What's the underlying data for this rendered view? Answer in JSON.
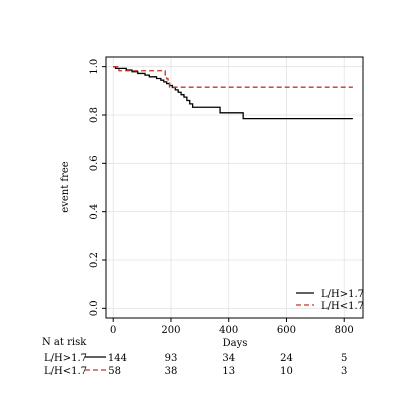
{
  "chart_data": {
    "type": "line",
    "xlabel": "Days",
    "ylabel": "event free",
    "xlim": [
      -25,
      865
    ],
    "ylim": [
      -0.04,
      1.04
    ],
    "x_ticks": [
      0,
      200,
      400,
      600,
      800
    ],
    "y_ticks": [
      0.0,
      0.2,
      0.4,
      0.6,
      0.8,
      1.0
    ],
    "y_tick_labels": [
      "0.0",
      "0.2",
      "0.4",
      "0.6",
      "0.8",
      "1.0"
    ],
    "grid": true,
    "legend_position": "bottom-right",
    "series": [
      {
        "name": "L/H>1.7",
        "color": "#000000",
        "dash": "solid",
        "steps": [
          [
            0,
            1.0
          ],
          [
            8,
            0.993
          ],
          [
            45,
            0.986
          ],
          [
            65,
            0.979
          ],
          [
            85,
            0.972
          ],
          [
            110,
            0.965
          ],
          [
            125,
            0.958
          ],
          [
            150,
            0.951
          ],
          [
            165,
            0.944
          ],
          [
            175,
            0.937
          ],
          [
            185,
            0.93
          ],
          [
            195,
            0.922
          ],
          [
            205,
            0.914
          ],
          [
            215,
            0.904
          ],
          [
            225,
            0.894
          ],
          [
            235,
            0.884
          ],
          [
            245,
            0.874
          ],
          [
            255,
            0.86
          ],
          [
            265,
            0.846
          ],
          [
            275,
            0.832
          ],
          [
            370,
            0.809
          ],
          [
            450,
            0.785
          ],
          [
            830,
            0.785
          ]
        ]
      },
      {
        "name": "L/H<1.7",
        "color": "#c0392b",
        "dash": "dashed",
        "steps": [
          [
            0,
            1.0
          ],
          [
            20,
            0.983
          ],
          [
            180,
            0.966
          ],
          [
            185,
            0.95
          ],
          [
            190,
            0.932
          ],
          [
            195,
            0.915
          ],
          [
            830,
            0.915
          ]
        ]
      }
    ],
    "risk_table": {
      "title": "N at risk",
      "times": [
        0,
        200,
        400,
        600,
        800
      ],
      "rows": [
        {
          "label": "L/H>1.7",
          "color": "#000000",
          "dash": "solid",
          "counts": [
            "144",
            "93",
            "34",
            "24",
            "5"
          ]
        },
        {
          "label": "L/H<1.7",
          "color": "#c0392b",
          "dash": "dashed",
          "counts": [
            "58",
            "38",
            "13",
            "10",
            "3"
          ]
        }
      ]
    }
  }
}
